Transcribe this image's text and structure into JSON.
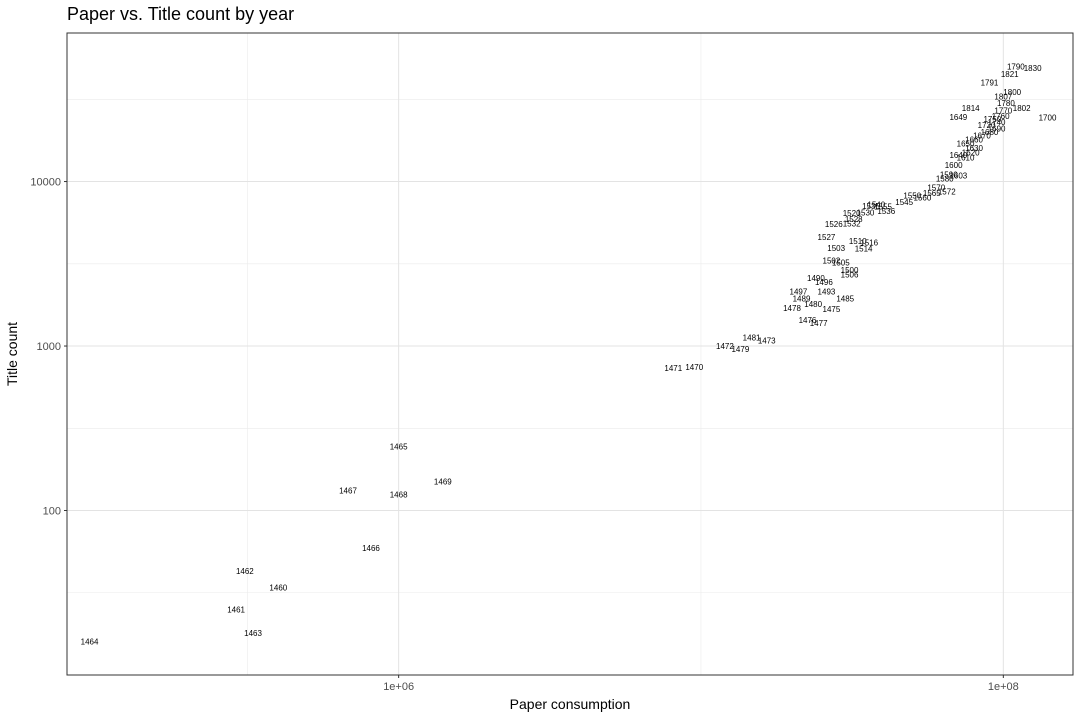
{
  "chart_data": {
    "type": "scatter",
    "title": "Paper vs. Title count by year",
    "xlabel": "Paper consumption",
    "ylabel": "Title count",
    "x_scale": "log10",
    "y_scale": "log10",
    "xlim": [
      80000,
      170000000
    ],
    "ylim": [
      10,
      80000
    ],
    "x_ticks": [
      {
        "value": 1000000,
        "label": "1e+06"
      },
      {
        "value": 100000000,
        "label": "1e+08"
      }
    ],
    "y_ticks": [
      {
        "value": 100,
        "label": "100"
      },
      {
        "value": 1000,
        "label": "1000"
      },
      {
        "value": 10000,
        "label": "10000"
      }
    ],
    "grid": true,
    "point_style": "year text labels",
    "points": [
      {
        "label": "1464",
        "x": 95000,
        "y": 16
      },
      {
        "label": "1461",
        "x": 290000,
        "y": 25
      },
      {
        "label": "1462",
        "x": 310000,
        "y": 43
      },
      {
        "label": "1463",
        "x": 330000,
        "y": 18
      },
      {
        "label": "1460",
        "x": 400000,
        "y": 34
      },
      {
        "label": "1466",
        "x": 810000,
        "y": 59
      },
      {
        "label": "1467",
        "x": 680000,
        "y": 132
      },
      {
        "label": "1468",
        "x": 1000000,
        "y": 125
      },
      {
        "label": "1469",
        "x": 1400000,
        "y": 150
      },
      {
        "label": "1465",
        "x": 1000000,
        "y": 245
      },
      {
        "label": "1471",
        "x": 8100000,
        "y": 735
      },
      {
        "label": "1470",
        "x": 9500000,
        "y": 745
      },
      {
        "label": "1472",
        "x": 12000000,
        "y": 1000
      },
      {
        "label": "1479",
        "x": 13500000,
        "y": 960
      },
      {
        "label": "1481",
        "x": 14700000,
        "y": 1130
      },
      {
        "label": "1473",
        "x": 16500000,
        "y": 1080
      },
      {
        "label": "1476",
        "x": 22500000,
        "y": 1440
      },
      {
        "label": "1478",
        "x": 20000000,
        "y": 1700
      },
      {
        "label": "1477",
        "x": 24500000,
        "y": 1380
      },
      {
        "label": "1475",
        "x": 27000000,
        "y": 1680
      },
      {
        "label": "1489",
        "x": 21500000,
        "y": 1950
      },
      {
        "label": "1485",
        "x": 30000000,
        "y": 1940
      },
      {
        "label": "1493",
        "x": 26000000,
        "y": 2150
      },
      {
        "label": "1497",
        "x": 21000000,
        "y": 2150
      },
      {
        "label": "1480",
        "x": 23500000,
        "y": 1800
      },
      {
        "label": "1490",
        "x": 24000000,
        "y": 2600
      },
      {
        "label": "1496",
        "x": 25500000,
        "y": 2450
      },
      {
        "label": "1506",
        "x": 31000000,
        "y": 2720
      },
      {
        "label": "1500",
        "x": 31000000,
        "y": 2900
      },
      {
        "label": "1502",
        "x": 27000000,
        "y": 3300
      },
      {
        "label": "1505",
        "x": 29000000,
        "y": 3220
      },
      {
        "label": "1510",
        "x": 33000000,
        "y": 4350
      },
      {
        "label": "1514",
        "x": 34500000,
        "y": 3930
      },
      {
        "label": "1516",
        "x": 36000000,
        "y": 4270
      },
      {
        "label": "1527",
        "x": 26000000,
        "y": 4600
      },
      {
        "label": "1503",
        "x": 28000000,
        "y": 3950
      },
      {
        "label": "1526",
        "x": 27500000,
        "y": 5530
      },
      {
        "label": "1532",
        "x": 31500000,
        "y": 5560
      },
      {
        "label": "1528",
        "x": 32000000,
        "y": 5900
      },
      {
        "label": "1520",
        "x": 31500000,
        "y": 6450
      },
      {
        "label": "1530",
        "x": 35000000,
        "y": 6500
      },
      {
        "label": "1535",
        "x": 36500000,
        "y": 7100
      },
      {
        "label": "1540",
        "x": 38000000,
        "y": 7250
      },
      {
        "label": "1555",
        "x": 40000000,
        "y": 7050
      },
      {
        "label": "1536",
        "x": 41000000,
        "y": 6600
      },
      {
        "label": "1545",
        "x": 47000000,
        "y": 7500
      },
      {
        "label": "1550",
        "x": 50000000,
        "y": 8200
      },
      {
        "label": "1560",
        "x": 54000000,
        "y": 8000
      },
      {
        "label": "1565",
        "x": 58000000,
        "y": 8500
      },
      {
        "label": "1570",
        "x": 60000000,
        "y": 9200
      },
      {
        "label": "1572",
        "x": 65000000,
        "y": 8700
      },
      {
        "label": "1580",
        "x": 64000000,
        "y": 10400
      },
      {
        "label": "1590",
        "x": 66000000,
        "y": 11000
      },
      {
        "label": "1600",
        "x": 68500000,
        "y": 12600
      },
      {
        "label": "1603",
        "x": 71000000,
        "y": 10900
      },
      {
        "label": "1610",
        "x": 75000000,
        "y": 14000
      },
      {
        "label": "1620",
        "x": 78000000,
        "y": 15000
      },
      {
        "label": "1630",
        "x": 80000000,
        "y": 16000
      },
      {
        "label": "1640",
        "x": 71000000,
        "y": 14500
      },
      {
        "label": "1649",
        "x": 71000000,
        "y": 24600
      },
      {
        "label": "1650",
        "x": 75000000,
        "y": 17000
      },
      {
        "label": "1660",
        "x": 80000000,
        "y": 18000
      },
      {
        "label": "1670",
        "x": 85000000,
        "y": 19000
      },
      {
        "label": "1680",
        "x": 90000000,
        "y": 20000
      },
      {
        "label": "1690",
        "x": 95000000,
        "y": 21000
      },
      {
        "label": "1700",
        "x": 140000000,
        "y": 24500
      },
      {
        "label": "1720",
        "x": 88000000,
        "y": 22000
      },
      {
        "label": "1740",
        "x": 95000000,
        "y": 23000
      },
      {
        "label": "1750",
        "x": 92000000,
        "y": 24000
      },
      {
        "label": "1760",
        "x": 98000000,
        "y": 25000
      },
      {
        "label": "1770",
        "x": 100000000,
        "y": 27000
      },
      {
        "label": "1780",
        "x": 102000000,
        "y": 30000
      },
      {
        "label": "1790",
        "x": 110000000,
        "y": 50000
      },
      {
        "label": "1791",
        "x": 90000000,
        "y": 40000
      },
      {
        "label": "1800",
        "x": 107000000,
        "y": 35000
      },
      {
        "label": "1802",
        "x": 115000000,
        "y": 28000
      },
      {
        "label": "1807",
        "x": 100000000,
        "y": 33000
      },
      {
        "label": "1814",
        "x": 78000000,
        "y": 28000
      },
      {
        "label": "1821",
        "x": 105000000,
        "y": 45000
      },
      {
        "label": "1830",
        "x": 125000000,
        "y": 49000
      }
    ]
  }
}
